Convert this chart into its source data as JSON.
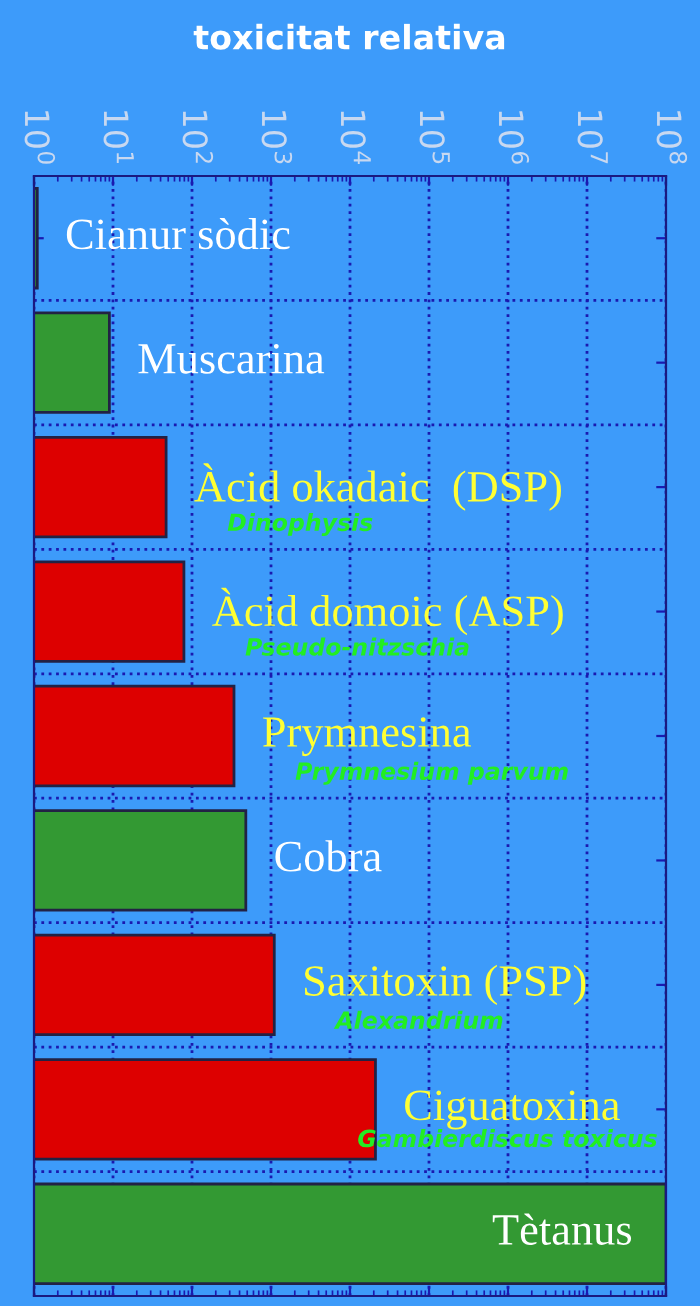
{
  "chart_data": {
    "type": "bar",
    "orientation": "horizontal",
    "title": "toxicitat relativa",
    "categories": [
      "Cianur sòdic",
      "Muscarina",
      "Àcid okadaic  (DSP)",
      "Àcid domoic (ASP)",
      "Prymnesina",
      "Cobra",
      "Saxitoxin (PSP)",
      "Ciguatoxina",
      "Tètanus"
    ],
    "values": [
      1.1,
      9,
      47,
      79,
      340,
      480,
      1100,
      21000,
      100000000
    ],
    "colors": [
      "#2f8f2f",
      "#339933",
      "#dd0000",
      "#dd0000",
      "#dd0000",
      "#339933",
      "#dd0000",
      "#dd0000",
      "#339933"
    ],
    "log": "x",
    "xlim": [
      1,
      100000000
    ],
    "xticks": [
      {
        "value": 1,
        "label": "10$^{0}$"
      },
      {
        "value": 10,
        "label": "10$^{1}$"
      },
      {
        "value": 100,
        "label": "10$^{2}$"
      },
      {
        "value": 1000,
        "label": "10$^{3}$"
      },
      {
        "value": 10000,
        "label": "10$^{4}$"
      },
      {
        "value": 100000,
        "label": "10$^{5}$"
      },
      {
        "value": 1000000,
        "label": "10$^{6}$"
      },
      {
        "value": 10000000,
        "label": "10$^{7}$"
      },
      {
        "value": 100000000,
        "label": "10$^{8}$"
      }
    ],
    "tick_labels": "x",
    "grid": true,
    "annotations": [
      "Dinophysis",
      "Pseudo-nitzschia",
      "Prymnesium parvum",
      "Alexandrium",
      "Gambierdiscus toxicus"
    ]
  }
}
